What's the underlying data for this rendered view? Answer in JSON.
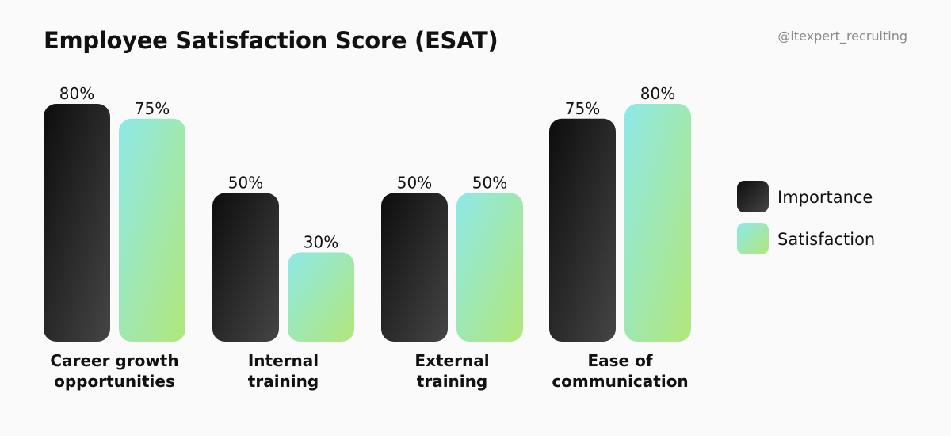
{
  "title": "Employee Satisfaction Score (ESAT)",
  "handle": "@itexpert_recruiting",
  "chart_data": {
    "type": "bar",
    "title": "Employee Satisfaction Score (ESAT)",
    "categories": [
      [
        "Career growth",
        "opportunities"
      ],
      [
        "Internal",
        "training"
      ],
      [
        "External",
        "training"
      ],
      [
        "Ease of",
        "communication"
      ]
    ],
    "series": [
      {
        "name": "Importance",
        "values": [
          80,
          50,
          50,
          75
        ],
        "labels": [
          "80%",
          "50%",
          "50%",
          "75%"
        ],
        "color_start": "#0d0d0d",
        "color_end": "#454545"
      },
      {
        "name": "Satisfaction",
        "values": [
          75,
          30,
          50,
          80
        ],
        "labels": [
          "75%",
          "30%",
          "50%",
          "80%"
        ],
        "color_start": "#8ee8e8",
        "color_end": "#b2e77a"
      }
    ],
    "ylim": [
      0,
      80
    ],
    "grid": false,
    "legend_position": "right"
  }
}
